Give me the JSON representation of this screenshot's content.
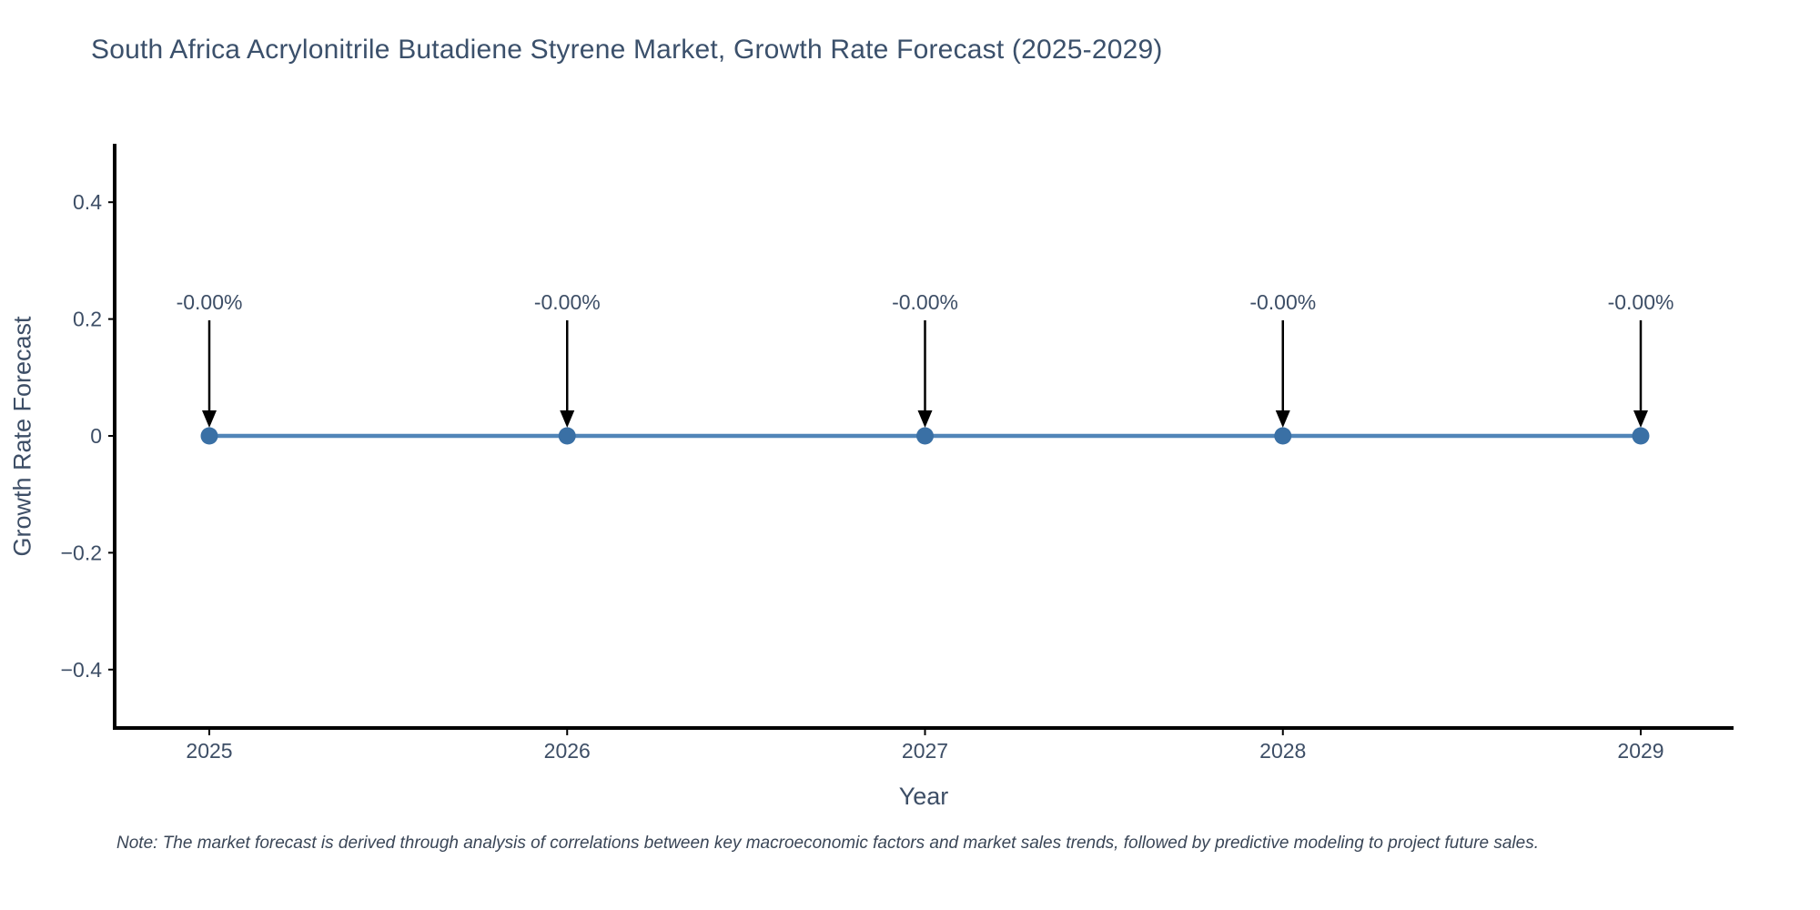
{
  "title": "South Africa Acrylonitrile Butadiene Styrene Market, Growth Rate Forecast (2025-2029)",
  "note": "Note: The market forecast is derived through analysis of correlations between key macroeconomic factors and market sales trends, followed by predictive modeling to project future sales.",
  "colors": {
    "line": "#5185b8",
    "marker": "#3a70a5",
    "axis": "#000000",
    "tick_text": "#3d4e66",
    "annotation_text": "#3d4e66",
    "arrow": "#000000",
    "title_text": "#3b506b"
  },
  "chart_data": {
    "type": "line",
    "title": "South Africa Acrylonitrile Butadiene Styrene Market, Growth Rate Forecast (2025-2029)",
    "x": [
      2025,
      2026,
      2027,
      2028,
      2029
    ],
    "values": [
      0,
      0,
      0,
      0,
      0
    ],
    "point_labels": [
      "-0.00%",
      "-0.00%",
      "-0.00%",
      "-0.00%",
      "-0.00%"
    ],
    "xlabel": "Year",
    "ylabel": "Growth Rate Forecast",
    "ylim": [
      -0.5,
      0.5
    ],
    "yticks": [
      0.4,
      0.2,
      0,
      -0.2,
      -0.4
    ],
    "ytick_labels": [
      "0.4",
      "0.2",
      "0",
      "−0.2",
      "−0.4"
    ],
    "xtick_labels": [
      "2025",
      "2026",
      "2027",
      "2028",
      "2029"
    ],
    "grid": false,
    "legend": "none",
    "marker": "circle"
  }
}
